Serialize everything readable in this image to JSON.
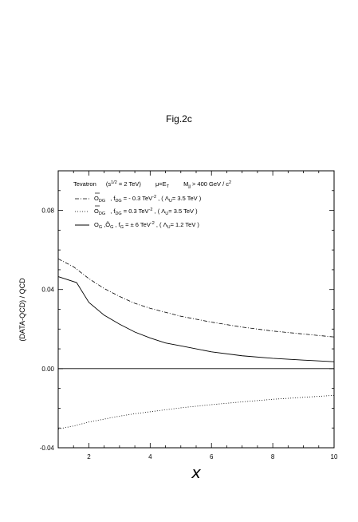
{
  "figure_label": "Fig.2c",
  "chart_data": {
    "type": "line",
    "title": "",
    "xlabel": "x",
    "ylabel": "(DATA-QCD) / QCD",
    "xlim": [
      1,
      10
    ],
    "ylim": [
      -0.04,
      0.1
    ],
    "x_ticks": [
      2,
      4,
      6,
      8,
      10
    ],
    "y_ticks": [
      -0.04,
      0.0,
      0.04,
      0.08
    ],
    "x_tick_labels": [
      "2",
      "4",
      "6",
      "8",
      "10"
    ],
    "y_tick_labels": [
      "-0.04",
      "0.00",
      "0.04",
      "0.08"
    ],
    "grid": false,
    "legend_position": "top-left",
    "header": {
      "collider": "Tevatron",
      "energy": "(s",
      "energy_sup": "1/2",
      "energy_rest": " = 2 TeV)",
      "scale": "μ=E",
      "scale_sub": "T",
      "mass_cut_pre": "M",
      "mass_cut_sub": "jj",
      "mass_cut_mid": " > 400 GeV / c",
      "mass_cut_sup": "2"
    },
    "legend": [
      {
        "style": "dash-dot",
        "op": "O",
        "op_sub": "DG",
        "coup": ",    f",
        "coup_sub": "DG",
        "coup_val": "  = - 0.3 TeV",
        "coup_sup": "-2",
        "scale_pre": " ,  ( Λ",
        "scale_sub": "U",
        "scale_val": "= 3.5 TeV )"
      },
      {
        "style": "dotted",
        "op": "O",
        "op_sub": "DG",
        "coup": ",    f",
        "coup_sub": "DG",
        "coup_val": "  =   0.3 TeV",
        "coup_sup": "-2",
        "scale_pre": " ,  ( Λ",
        "scale_sub": "U",
        "scale_val": "= 3.5 TeV )"
      },
      {
        "style": "solid",
        "op": "O",
        "op_sub": "G",
        "op2": " ,Õ",
        "op2_sub": "G",
        "coup": " ,  f",
        "coup_sub": "G",
        "coup_val": " = ± 6   TeV",
        "coup_sup": "-2",
        "scale_pre": " ,  ( Λ",
        "scale_sub": "U",
        "scale_val": "= 1.2 TeV )"
      }
    ],
    "series": [
      {
        "style": "dash-dot",
        "x": [
          1,
          1.5,
          2,
          2.5,
          3,
          3.5,
          4,
          4.5,
          5,
          6,
          7,
          8,
          9,
          10
        ],
        "y": [
          0.0555,
          0.0515,
          0.0455,
          0.0405,
          0.0365,
          0.033,
          0.0305,
          0.0285,
          0.0265,
          0.0235,
          0.021,
          0.019,
          0.0175,
          0.016
        ]
      },
      {
        "style": "dotted",
        "x": [
          1,
          1.5,
          2,
          2.5,
          3,
          3.5,
          4,
          4.5,
          5,
          6,
          7,
          8,
          9,
          10
        ],
        "y": [
          -0.0305,
          -0.029,
          -0.027,
          -0.0255,
          -0.024,
          -0.0228,
          -0.0218,
          -0.0208,
          -0.0198,
          -0.0182,
          -0.0168,
          -0.0155,
          -0.0145,
          -0.0135
        ]
      },
      {
        "style": "solid",
        "x": [
          1,
          1.6,
          2,
          2.5,
          3,
          3.5,
          4,
          4.5,
          5,
          6,
          7,
          8,
          9,
          10
        ],
        "y": [
          0.0465,
          0.0435,
          0.0335,
          0.027,
          0.0225,
          0.0185,
          0.0155,
          0.013,
          0.0115,
          0.0085,
          0.0065,
          0.0052,
          0.0043,
          0.0035
        ]
      },
      {
        "style": "zero-line",
        "x": [
          1,
          10
        ],
        "y": [
          0,
          0
        ]
      }
    ]
  }
}
